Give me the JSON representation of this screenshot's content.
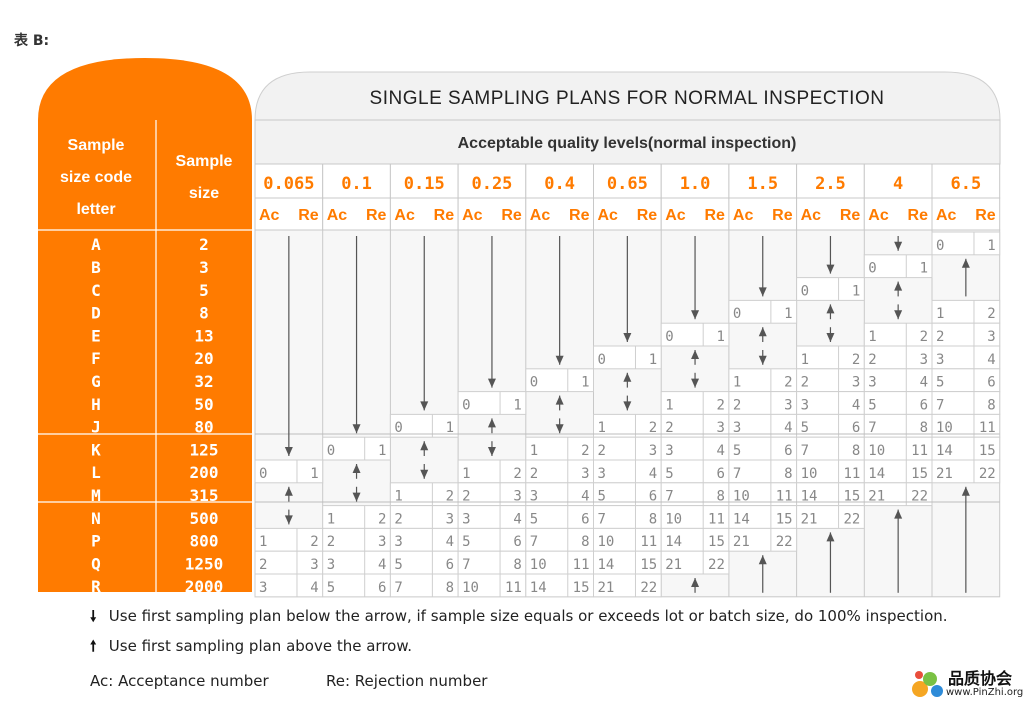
{
  "page_label": "表 B:",
  "table": {
    "title": "SINGLE SAMPLING PLANS FOR NORMAL INSPECTION",
    "aql_caption": "Acceptable quality levels(normal inspection)",
    "col_code_header": "Sample size code letter",
    "col_size_header": "Sample size",
    "ac_label": "Ac",
    "re_label": "Re",
    "aql_levels": [
      "0.065",
      "0.1",
      "0.15",
      "0.25",
      "0.4",
      "0.65",
      "1.0",
      "1.5",
      "2.5",
      "4",
      "6.5"
    ],
    "code_letters": [
      "A",
      "B",
      "C",
      "D",
      "E",
      "F",
      "G",
      "H",
      "J",
      "K",
      "L",
      "M",
      "N",
      "P",
      "Q",
      "R"
    ],
    "sample_sizes": [
      "2",
      "3",
      "5",
      "8",
      "13",
      "20",
      "32",
      "50",
      "80",
      "125",
      "200",
      "315",
      "500",
      "800",
      "1250",
      "2000"
    ],
    "plans": [
      [
        "down",
        "down",
        "down",
        "down",
        "down",
        "down",
        "down",
        "down",
        "down",
        "down",
        "0|1"
      ],
      [
        "down",
        "down",
        "down",
        "down",
        "down",
        "down",
        "down",
        "down",
        "down",
        "0|1",
        "up"
      ],
      [
        "down",
        "down",
        "down",
        "down",
        "down",
        "down",
        "down",
        "down",
        "0|1",
        "up",
        "up"
      ],
      [
        "down",
        "down",
        "down",
        "down",
        "down",
        "down",
        "down",
        "0|1",
        "up",
        "down",
        "1|2"
      ],
      [
        "down",
        "down",
        "down",
        "down",
        "down",
        "down",
        "0|1",
        "up",
        "down",
        "1|2",
        "2|3"
      ],
      [
        "down",
        "down",
        "down",
        "down",
        "down",
        "0|1",
        "up",
        "down",
        "1|2",
        "2|3",
        "3|4"
      ],
      [
        "down",
        "down",
        "down",
        "down",
        "0|1",
        "up",
        "down",
        "1|2",
        "2|3",
        "3|4",
        "5|6"
      ],
      [
        "down",
        "down",
        "down",
        "0|1",
        "up",
        "down",
        "1|2",
        "2|3",
        "3|4",
        "5|6",
        "7|8"
      ],
      [
        "down",
        "down",
        "0|1",
        "up",
        "down",
        "1|2",
        "2|3",
        "3|4",
        "5|6",
        "7|8",
        "10|11"
      ],
      [
        "down",
        "0|1",
        "up",
        "down",
        "1|2",
        "2|3",
        "3|4",
        "5|6",
        "7|8",
        "10|11",
        "14|15"
      ],
      [
        "0|1",
        "up",
        "down",
        "1|2",
        "2|3",
        "3|4",
        "5|6",
        "7|8",
        "10|11",
        "14|15",
        "21|22"
      ],
      [
        "up",
        "down",
        "1|2",
        "2|3",
        "3|4",
        "5|6",
        "7|8",
        "10|11",
        "14|15",
        "21|22",
        "up"
      ],
      [
        "down",
        "1|2",
        "2|3",
        "3|4",
        "5|6",
        "7|8",
        "10|11",
        "14|15",
        "21|22",
        "up",
        "up"
      ],
      [
        "1|2",
        "2|3",
        "3|4",
        "5|6",
        "7|8",
        "10|11",
        "14|15",
        "21|22",
        "up",
        "up",
        "up"
      ],
      [
        "2|3",
        "3|4",
        "5|6",
        "7|8",
        "10|11",
        "14|15",
        "21|22",
        "up",
        "up",
        "up",
        "up"
      ],
      [
        "3|4",
        "5|6",
        "7|8",
        "10|11",
        "14|15",
        "21|22",
        "up",
        "up",
        "up",
        "up",
        "up"
      ]
    ]
  },
  "notes": {
    "down": "Use first sampling plan below the arrow, if sample size equals or exceeds lot or batch size, do 100% inspection.",
    "up": "Use first sampling plan above the arrow.",
    "down_icon": "down-arrow-icon",
    "up_icon": "up-arrow-icon"
  },
  "legend": {
    "ac": "Ac: Acceptance number",
    "re": "Re: Rejection number"
  },
  "brand": {
    "name": "品质协会",
    "url": "www.PinZhi.org",
    "logo_icon": "pinzhi-logo-icon"
  },
  "colors": {
    "orange": "#ff7b00",
    "orange_text": "#ff7b00",
    "grid": "#bdbdbd",
    "header_bg": "#f2f2f2",
    "cell_text": "#888888"
  }
}
